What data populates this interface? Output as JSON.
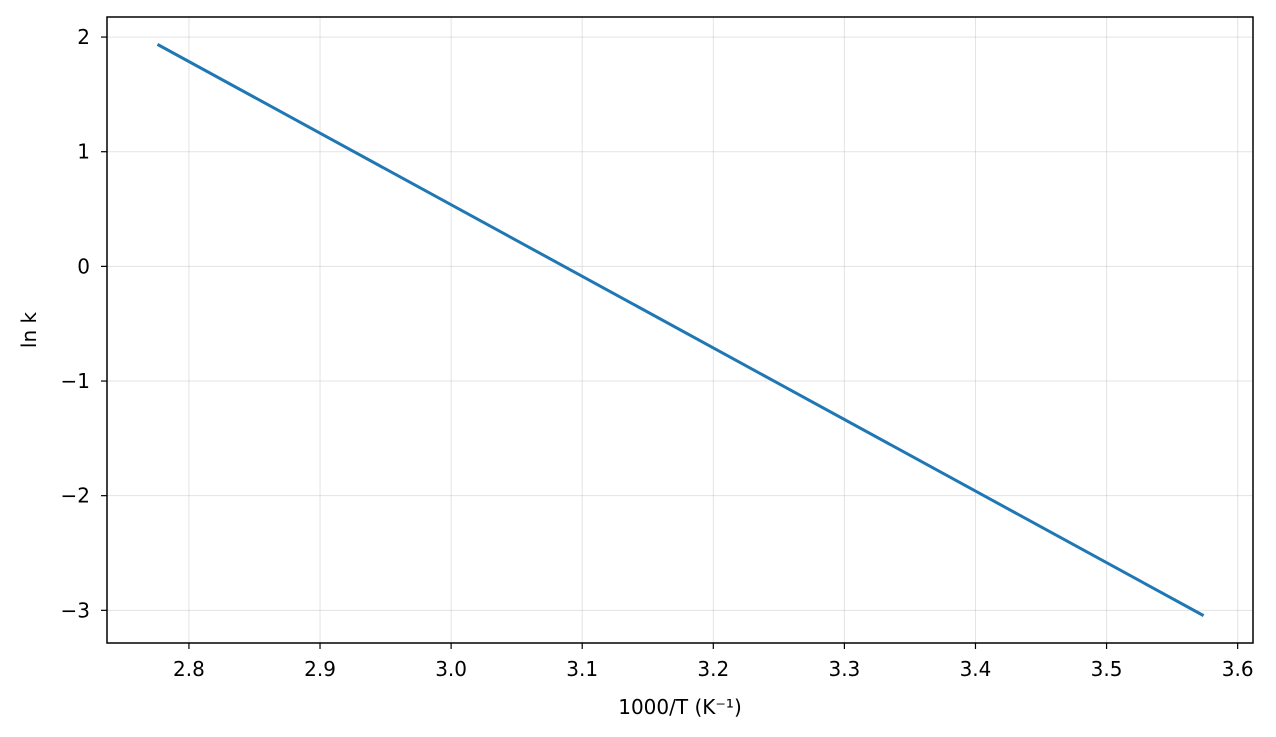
{
  "chart_data": {
    "type": "line",
    "title": "",
    "xlabel": "1000/T (K⁻¹)",
    "ylabel": "ln k",
    "xlim": [
      2.7375,
      3.6117
    ],
    "ylim": [
      -3.285,
      2.175
    ],
    "grid": true,
    "legend": "none",
    "x_ticks": [
      2.8,
      2.9,
      3.0,
      3.1,
      3.2,
      3.3,
      3.4,
      3.5,
      3.6
    ],
    "x_tick_labels": [
      "2.8",
      "2.9",
      "3.0",
      "3.1",
      "3.2",
      "3.3",
      "3.4",
      "3.5",
      "3.6"
    ],
    "y_ticks": [
      2,
      1,
      0,
      -1,
      -2,
      -3
    ],
    "y_tick_labels": [
      "2",
      "1",
      "0",
      "−1",
      "−2",
      "−3"
    ],
    "series": [
      {
        "color": "#1f77b4",
        "x": [
          2.777,
          3.573
        ],
        "y": [
          1.93,
          -3.04
        ]
      }
    ]
  }
}
